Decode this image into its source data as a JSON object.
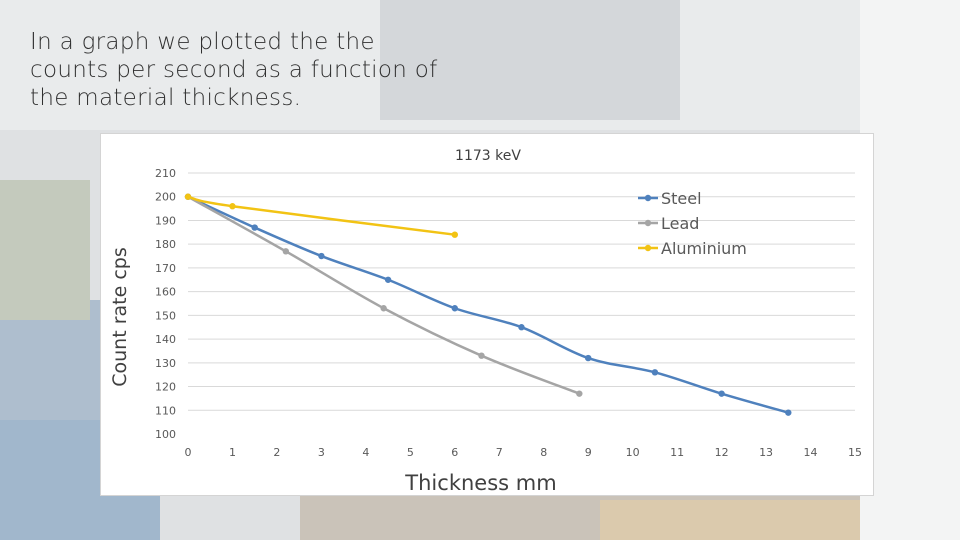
{
  "slide": {
    "heading": "In a graph we plotted the the counts per second as a function of the material thickness."
  },
  "chart_data": {
    "type": "line",
    "title": "1173 keV",
    "xlabel": "Thickness mm",
    "ylabel": "Count rate cps",
    "xlim": [
      0,
      15
    ],
    "ylim": [
      100,
      210
    ],
    "x_ticks": [
      0,
      1,
      2,
      3,
      4,
      5,
      6,
      7,
      8,
      9,
      10,
      11,
      12,
      13,
      14,
      15
    ],
    "y_ticks": [
      100,
      110,
      120,
      130,
      140,
      150,
      160,
      170,
      180,
      190,
      200,
      210
    ],
    "grid": "horizontal",
    "legend": "top-right",
    "series": [
      {
        "name": "Steel",
        "color": "#4f81bd",
        "x": [
          0,
          1.5,
          3,
          4.5,
          6,
          7.5,
          9,
          10.5,
          12,
          13.5
        ],
        "y": [
          200,
          187,
          175,
          165,
          153,
          145,
          132,
          126,
          117,
          109
        ]
      },
      {
        "name": "Lead",
        "color": "#a5a5a5",
        "x": [
          0,
          2.2,
          4.4,
          6.6,
          8.8
        ],
        "y": [
          200,
          177,
          153,
          133,
          117
        ]
      },
      {
        "name": "Aluminium",
        "color": "#f2c314",
        "x": [
          0,
          1,
          6
        ],
        "y": [
          200,
          196,
          184
        ]
      }
    ]
  }
}
